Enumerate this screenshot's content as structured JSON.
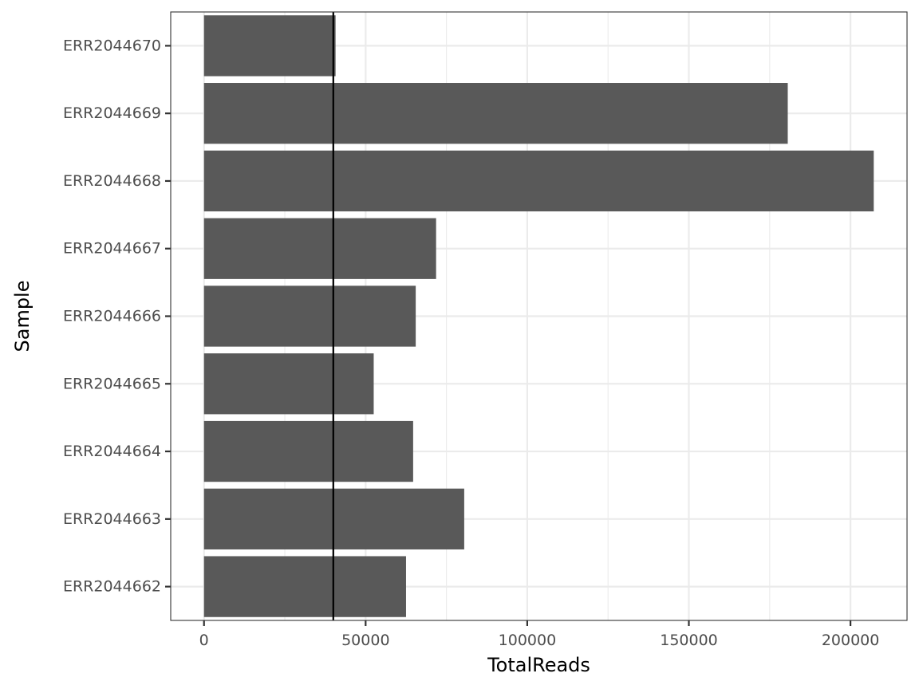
{
  "chart_data": {
    "type": "bar",
    "orientation": "horizontal",
    "title": "",
    "xlabel": "TotalReads",
    "ylabel": "Sample",
    "categories": [
      "ERR2044662",
      "ERR2044663",
      "ERR2044664",
      "ERR2044665",
      "ERR2044666",
      "ERR2044667",
      "ERR2044668",
      "ERR2044669",
      "ERR2044670"
    ],
    "values": [
      62500,
      80500,
      64700,
      52500,
      65500,
      71800,
      207200,
      180600,
      40700
    ],
    "xlim": [
      -10300,
      217500
    ],
    "xticks": [
      0,
      50000,
      100000,
      150000,
      200000
    ],
    "xtick_labels": [
      "0",
      "50000",
      "100000",
      "150000",
      "200000"
    ],
    "reference_line": {
      "axis": "x",
      "value": 40000,
      "color": "#000000"
    },
    "grid": true,
    "legend": "none",
    "colors": {
      "bar": "#595959",
      "grid": "#ebebeb",
      "panel_border": "#333333",
      "tick_text": "#4d4d4d"
    }
  }
}
